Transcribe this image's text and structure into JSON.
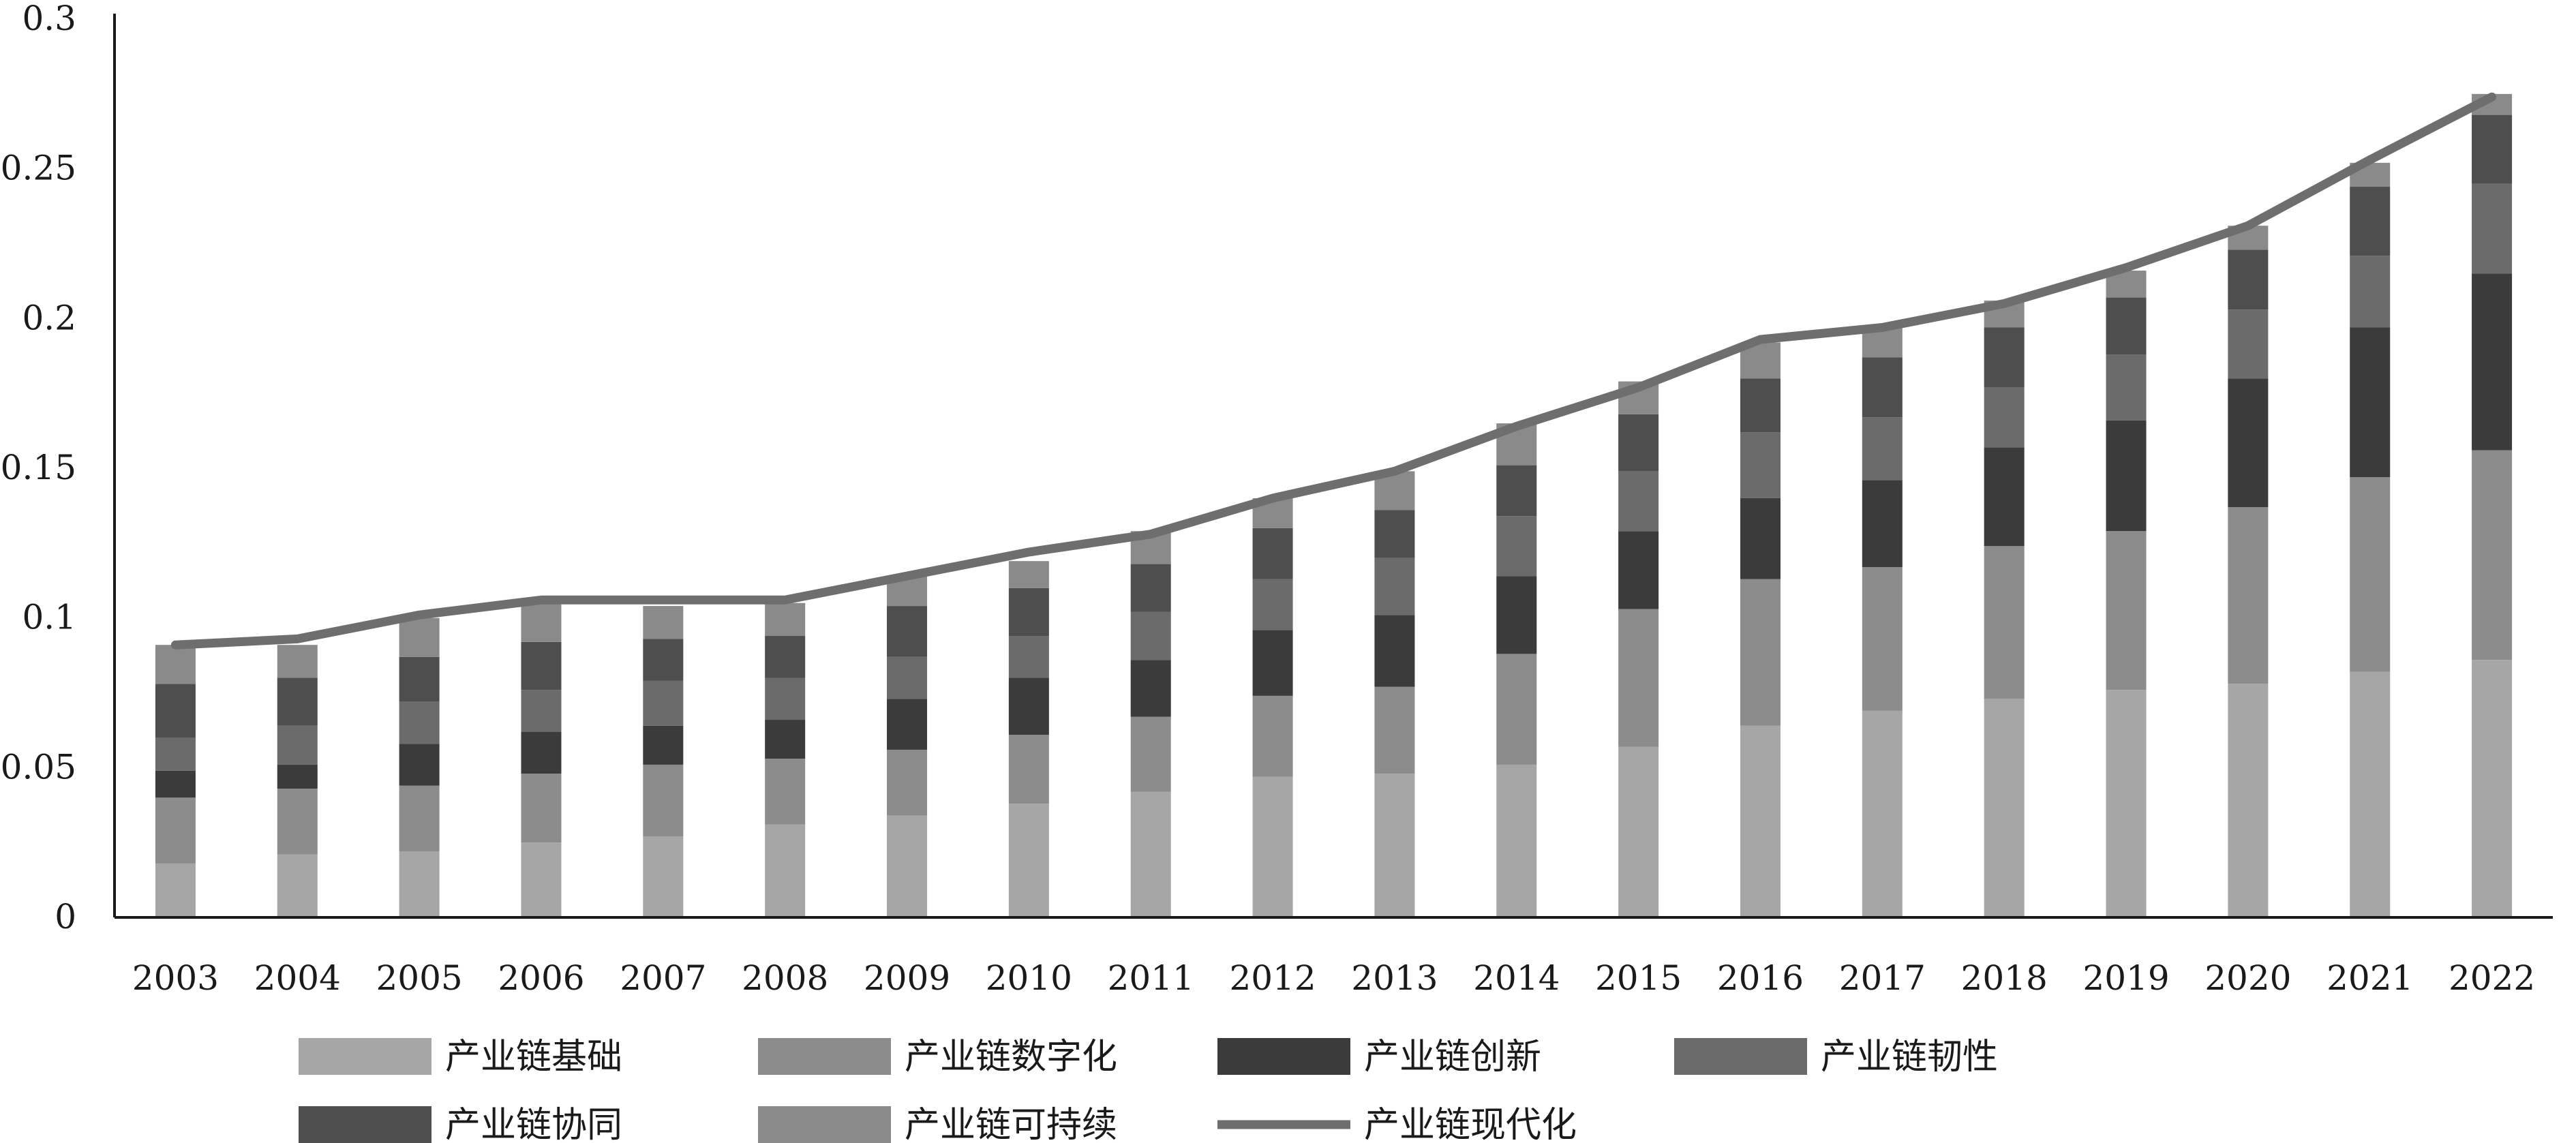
{
  "chart_data": {
    "type": "bar",
    "stacked": true,
    "title": "",
    "xlabel": "",
    "ylabel": "",
    "ylim": [
      0,
      0.3
    ],
    "yticks": [
      "0",
      "0.05",
      "0.1",
      "0.15",
      "0.2",
      "0.25",
      "0.3"
    ],
    "ytick_values": [
      0,
      0.05,
      0.1,
      0.15,
      0.2,
      0.25,
      0.3
    ],
    "grid": false,
    "legend_position": "bottom",
    "categories": [
      "2003",
      "2004",
      "2005",
      "2006",
      "2007",
      "2008",
      "2009",
      "2010",
      "2011",
      "2012",
      "2013",
      "2014",
      "2015",
      "2016",
      "2017",
      "2018",
      "2019",
      "2020",
      "2021",
      "2022"
    ],
    "series": [
      {
        "name": "产业链基础",
        "type": "bar",
        "color": "#a6a6a6",
        "values": [
          0.018,
          0.021,
          0.022,
          0.025,
          0.027,
          0.031,
          0.034,
          0.038,
          0.042,
          0.047,
          0.048,
          0.051,
          0.057,
          0.064,
          0.069,
          0.073,
          0.076,
          0.078,
          0.082,
          0.086
        ]
      },
      {
        "name": "产业链数字化",
        "type": "bar",
        "color": "#8c8c8c",
        "values": [
          0.022,
          0.022,
          0.022,
          0.023,
          0.024,
          0.022,
          0.022,
          0.023,
          0.025,
          0.027,
          0.029,
          0.037,
          0.046,
          0.049,
          0.048,
          0.051,
          0.053,
          0.059,
          0.065,
          0.07
        ]
      },
      {
        "name": "产业链创新",
        "type": "bar",
        "color": "#3b3b3b",
        "values": [
          0.009,
          0.008,
          0.014,
          0.014,
          0.013,
          0.013,
          0.017,
          0.019,
          0.019,
          0.022,
          0.024,
          0.026,
          0.026,
          0.027,
          0.029,
          0.033,
          0.037,
          0.043,
          0.05,
          0.059
        ]
      },
      {
        "name": "产业链韧性",
        "type": "bar",
        "color": "#6b6b6b",
        "values": [
          0.011,
          0.013,
          0.014,
          0.014,
          0.015,
          0.014,
          0.014,
          0.014,
          0.016,
          0.017,
          0.019,
          0.02,
          0.02,
          0.022,
          0.021,
          0.02,
          0.022,
          0.023,
          0.024,
          0.03
        ]
      },
      {
        "name": "产业链协同",
        "type": "bar",
        "color": "#4e4e4e",
        "values": [
          0.018,
          0.016,
          0.015,
          0.016,
          0.014,
          0.014,
          0.017,
          0.016,
          0.016,
          0.017,
          0.016,
          0.017,
          0.019,
          0.018,
          0.02,
          0.02,
          0.019,
          0.02,
          0.023,
          0.023
        ]
      },
      {
        "name": "产业链可持续",
        "type": "bar",
        "color": "#8a8a8a",
        "values": [
          0.013,
          0.011,
          0.013,
          0.013,
          0.011,
          0.011,
          0.01,
          0.009,
          0.011,
          0.01,
          0.013,
          0.014,
          0.011,
          0.012,
          0.01,
          0.009,
          0.009,
          0.008,
          0.008,
          0.007
        ]
      },
      {
        "name": "产业链现代化",
        "type": "line",
        "color": "#6e6e6e",
        "values": [
          0.091,
          0.093,
          0.101,
          0.106,
          0.106,
          0.106,
          0.114,
          0.122,
          0.128,
          0.14,
          0.149,
          0.164,
          0.177,
          0.193,
          0.197,
          0.205,
          0.217,
          0.231,
          0.253,
          0.274
        ]
      }
    ]
  }
}
